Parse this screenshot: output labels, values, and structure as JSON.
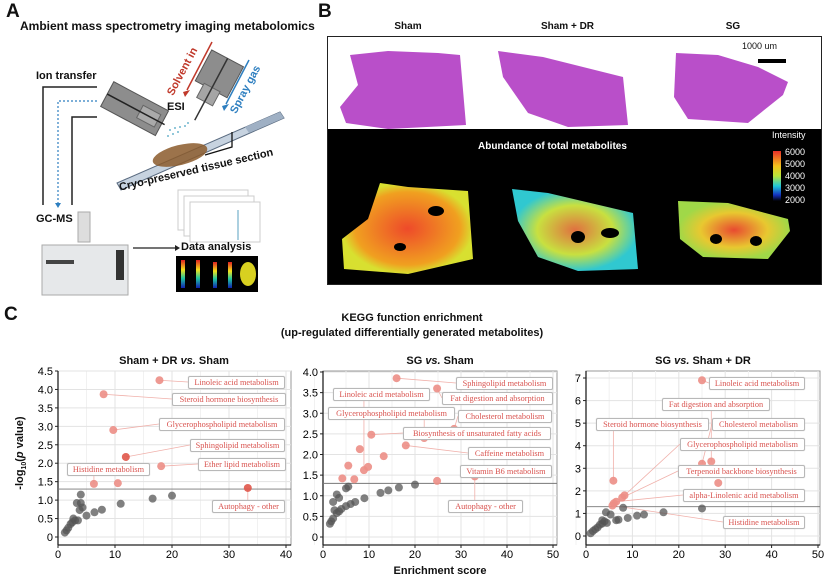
{
  "panel_a": {
    "label": "A",
    "title": "Ambient mass spectrometry imaging metabolomics",
    "ion_transfer": "Ion transfer",
    "solvent_in": "Solvent in",
    "spray_gas": "Spray gas",
    "esi": "ESI",
    "tissue": "Cryo-preserved tissue section",
    "gcms": "GC-MS",
    "data_analysis": "Data analysis",
    "colors": {
      "solvent": "#c0392b",
      "spray": "#2e7fc0",
      "tissue": "#8b5a2b"
    }
  },
  "panel_b": {
    "label": "B",
    "columns": [
      "Sham",
      "Sham + DR",
      "SG"
    ],
    "scale_bar": "1000 um",
    "heatmap_title": "Abundance of total metabolites",
    "colorbar_title": "Intensity",
    "colorbar_ticks": [
      "6000",
      "5000",
      "4000",
      "3000",
      "2000"
    ],
    "colors": {
      "he_stain": "#b94fc9",
      "background": "#000000"
    }
  },
  "panel_c": {
    "label": "C",
    "title": "KEGG function enrichment",
    "subtitle": "(up-regulated differentially generated metabolites)",
    "ylabel": {
      "pre": "-log",
      "sub": "10",
      "open": "(",
      "p": "p",
      "post": " value)"
    },
    "xlabel": "Enrichment score"
  },
  "chart_data": [
    {
      "type": "scatter",
      "title": {
        "a": "Sham + DR ",
        "vs": "vs.",
        "b": " Sham"
      },
      "xlim": [
        0,
        40
      ],
      "ylim": [
        0,
        4.5
      ],
      "xticks": [
        "0",
        "10",
        "20",
        "30",
        "40"
      ],
      "yticks": [
        "0",
        "0.5",
        "1.0",
        "1.5",
        "2.0",
        "2.5",
        "3.0",
        "3.5",
        "4.0",
        "4.5"
      ],
      "threshold": 1.3,
      "grid": true,
      "significant_points": [
        [
          17.8,
          4.25
        ],
        [
          8,
          3.87
        ],
        [
          9.7,
          2.9
        ],
        [
          11.9,
          2.17
        ],
        [
          18.1,
          1.92
        ],
        [
          6.3,
          1.44
        ],
        [
          10.5,
          1.46
        ],
        [
          33.3,
          1.33
        ]
      ],
      "other_points": [
        [
          4,
          1.15
        ],
        [
          3.3,
          0.92
        ],
        [
          4,
          0.92
        ],
        [
          4.3,
          0.8
        ],
        [
          3.8,
          0.73
        ],
        [
          11,
          0.9
        ],
        [
          16.6,
          1.04
        ],
        [
          20,
          1.12
        ],
        [
          7.7,
          0.74
        ],
        [
          6.4,
          0.67
        ],
        [
          5,
          0.58
        ],
        [
          3.5,
          0.45
        ],
        [
          3,
          0.45
        ],
        [
          2.7,
          0.5
        ],
        [
          2.5,
          0.4
        ],
        [
          2.2,
          0.35
        ],
        [
          1.8,
          0.25
        ],
        [
          1.5,
          0.18
        ],
        [
          1.2,
          0.12
        ]
      ],
      "annotations": [
        "Linoleic acid metabolism",
        "Steroid hormone biosynthesis",
        "Glycerophospholipid metabolism",
        "Sphingolipid metabolism",
        "Ether lipid metabolism",
        "Histidine metabolism",
        "Autophagy - other"
      ]
    },
    {
      "type": "scatter",
      "title": {
        "a": "SG ",
        "vs": "vs.",
        "b": " Sham"
      },
      "xlim": [
        0,
        50
      ],
      "ylim": [
        0,
        4.0
      ],
      "xticks": [
        "0",
        "10",
        "20",
        "30",
        "40",
        "50"
      ],
      "yticks": [
        "0",
        "0.5",
        "1.0",
        "1.5",
        "2.0",
        "2.5",
        "3.0",
        "3.5",
        "4.0"
      ],
      "threshold": 1.3,
      "grid": true,
      "significant_points": [
        [
          16,
          3.85
        ],
        [
          24.8,
          3.6
        ],
        [
          28.5,
          2.62
        ],
        [
          22,
          2.4
        ],
        [
          10.5,
          2.48
        ],
        [
          18,
          2.22
        ],
        [
          8,
          2.13
        ],
        [
          13.2,
          1.96
        ],
        [
          5.5,
          1.73
        ],
        [
          9.8,
          1.7
        ],
        [
          8.9,
          1.62
        ],
        [
          4.2,
          1.42
        ],
        [
          6.8,
          1.4
        ],
        [
          24.8,
          1.36
        ],
        [
          33,
          1.47
        ]
      ],
      "other_points": [
        [
          5.5,
          1.22
        ],
        [
          5,
          1.18
        ],
        [
          3,
          1.03
        ],
        [
          3.5,
          0.95
        ],
        [
          2.2,
          0.85
        ],
        [
          16.5,
          1.2
        ],
        [
          20,
          1.27
        ],
        [
          14.2,
          1.13
        ],
        [
          12.5,
          1.07
        ],
        [
          9,
          0.94
        ],
        [
          7,
          0.85
        ],
        [
          6,
          0.8
        ],
        [
          5,
          0.75
        ],
        [
          4,
          0.68
        ],
        [
          3.5,
          0.62
        ],
        [
          3,
          0.58
        ],
        [
          2.5,
          0.65
        ],
        [
          2.2,
          0.45
        ],
        [
          1.8,
          0.38
        ],
        [
          1.5,
          0.32
        ]
      ],
      "annotations": [
        "Sphingolipid metabolism",
        "Linoleic acid metabolism",
        "Fat digestion and absorption",
        "Glycerophospholipid metabolism",
        "Cholesterol metabolism",
        "Biosynthesis of unsaturated fatty acids",
        "Caffeine metabolism",
        "Vitamin B6 metabolism",
        "Autophagy - other"
      ]
    },
    {
      "type": "scatter",
      "title": {
        "a": "SG ",
        "vs": "vs.",
        "b": " Sham + DR"
      },
      "xlim": [
        0,
        50
      ],
      "ylim": [
        0,
        7
      ],
      "xticks": [
        "0",
        "10",
        "20",
        "30",
        "40",
        "50"
      ],
      "yticks": [
        "0",
        "1",
        "2",
        "3",
        "4",
        "5",
        "6",
        "7"
      ],
      "threshold": 1.3,
      "grid": true,
      "significant_points": [
        [
          25,
          6.9
        ],
        [
          5.9,
          2.45
        ],
        [
          25,
          3.2
        ],
        [
          27,
          3.3
        ],
        [
          28.5,
          2.35
        ],
        [
          8.3,
          1.8
        ],
        [
          7.8,
          1.7
        ],
        [
          6.5,
          1.52
        ],
        [
          6,
          1.45
        ],
        [
          5.7,
          1.35
        ]
      ],
      "other_points": [
        [
          8,
          1.25
        ],
        [
          25,
          1.22
        ],
        [
          16.7,
          1.05
        ],
        [
          12.5,
          0.95
        ],
        [
          11,
          0.9
        ],
        [
          9,
          0.8
        ],
        [
          7,
          0.72
        ],
        [
          6.5,
          0.7
        ],
        [
          4.3,
          1.05
        ],
        [
          5.3,
          0.95
        ],
        [
          3.5,
          0.7
        ],
        [
          4,
          0.65
        ],
        [
          4.5,
          0.58
        ],
        [
          3.5,
          0.55
        ],
        [
          3,
          0.5
        ],
        [
          2.5,
          0.38
        ],
        [
          2,
          0.3
        ],
        [
          1.5,
          0.22
        ],
        [
          1,
          0.12
        ]
      ],
      "annotations": [
        "Linoleic acid metabolism",
        "Fat digestion and absorption",
        "Steroid hormone biosynthesis",
        "Cholesterol metabolism",
        "Glycerophospholipid metabolism",
        "Terpenoid backbone biosynthesis",
        "alpha-Linolenic acid metabolism",
        "Histidine metabolism"
      ]
    }
  ],
  "colors": {
    "significant": "#ec8e86",
    "significant_strong": "#e0574a",
    "other": "#555555",
    "annotation_text": "#d9534f",
    "threshold": "#888888"
  }
}
